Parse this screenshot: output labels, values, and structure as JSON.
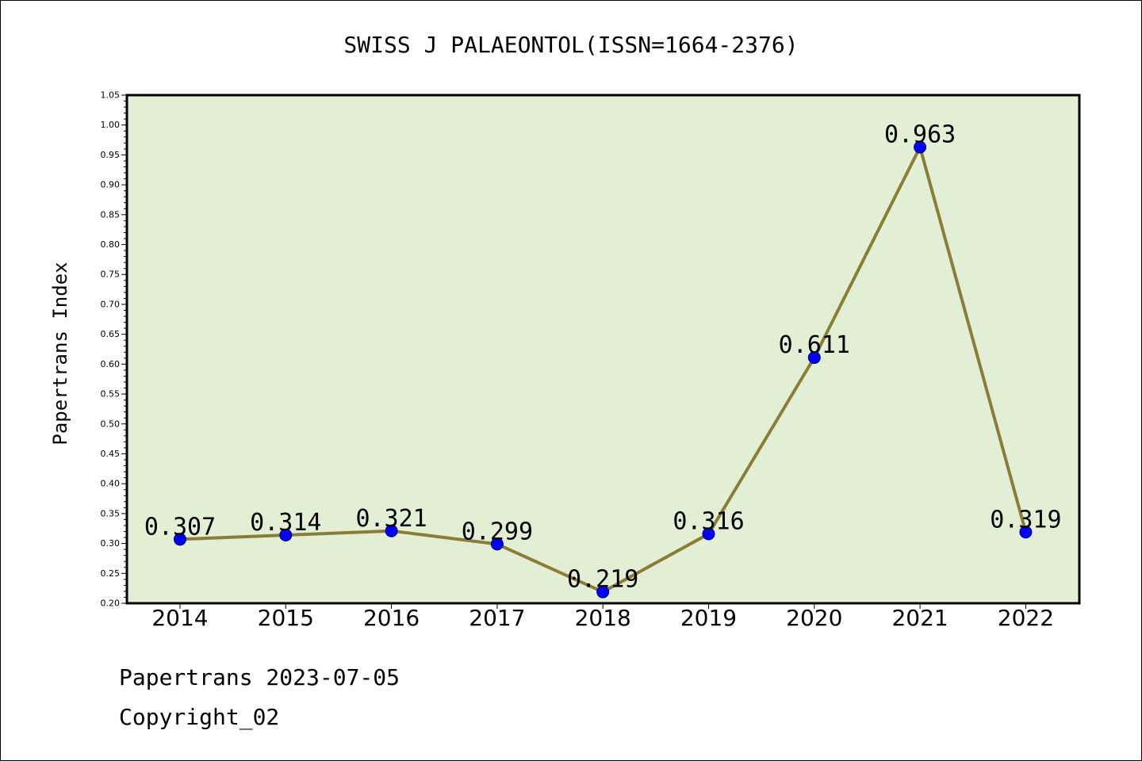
{
  "chart_data": {
    "type": "line",
    "title": "SWISS J PALAEONTOL(ISSN=1664-2376)",
    "ylabel": "Papertrans Index",
    "xlabel": "",
    "categories": [
      "2014",
      "2015",
      "2016",
      "2017",
      "2018",
      "2019",
      "2020",
      "2021",
      "2022"
    ],
    "values": [
      0.307,
      0.314,
      0.321,
      0.299,
      0.219,
      0.316,
      0.611,
      0.963,
      0.319
    ],
    "value_labels": [
      "0.307",
      "0.314",
      "0.321",
      "0.299",
      "0.219",
      "0.316",
      "0.611",
      "0.963",
      "0.319"
    ],
    "ylim": [
      0.2,
      1.05
    ],
    "yticks": [
      "0.20",
      "0.25",
      "0.30",
      "0.35",
      "0.40",
      "0.45",
      "0.50",
      "0.55",
      "0.60",
      "0.65",
      "0.70",
      "0.75",
      "0.80",
      "0.85",
      "0.90",
      "0.95",
      "1.00",
      "1.05"
    ],
    "grid": false,
    "legend": "none",
    "colors": {
      "plot_background": "#e2efd5",
      "line": "#8b7d37",
      "marker": "#0000ff",
      "marker_edge": "#000066"
    }
  },
  "footer": {
    "line1": "Papertrans 2023-07-05",
    "line2": "Copyright_02"
  }
}
